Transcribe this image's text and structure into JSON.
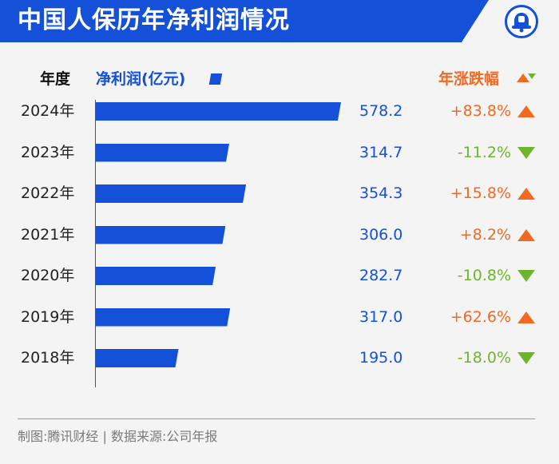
{
  "header": {
    "title": "中国人保历年净利润情况"
  },
  "columns": {
    "year": "年度",
    "profit": "净利润(亿元)",
    "change": "年涨跌幅"
  },
  "colors": {
    "bar": "#1450d8",
    "up": "#f26a21",
    "down": "#6fb52c"
  },
  "chart_data": {
    "type": "bar",
    "orientation": "horizontal",
    "categories": [
      "2024年",
      "2023年",
      "2022年",
      "2021年",
      "2020年",
      "2019年",
      "2018年"
    ],
    "values": [
      578.2,
      314.7,
      354.3,
      306.0,
      282.7,
      317.0,
      195.0
    ],
    "value_labels": [
      "578.2",
      "314.7",
      "354.3",
      "306.0",
      "282.7",
      "317.0",
      "195.0"
    ],
    "changes": [
      "+83.8%",
      "-11.2%",
      "+15.8%",
      "+8.2%",
      "-10.8%",
      "+62.6%",
      "-18.0%"
    ],
    "directions": [
      "up",
      "down",
      "up",
      "up",
      "down",
      "up",
      "down"
    ],
    "xlim": [
      0,
      578.2
    ],
    "ylabel": "年度",
    "xlabel": "净利润(亿元)",
    "grid": false,
    "legend": "none"
  },
  "footer": {
    "text": "制图:腾讯财经 | 数据来源:公司年报"
  }
}
